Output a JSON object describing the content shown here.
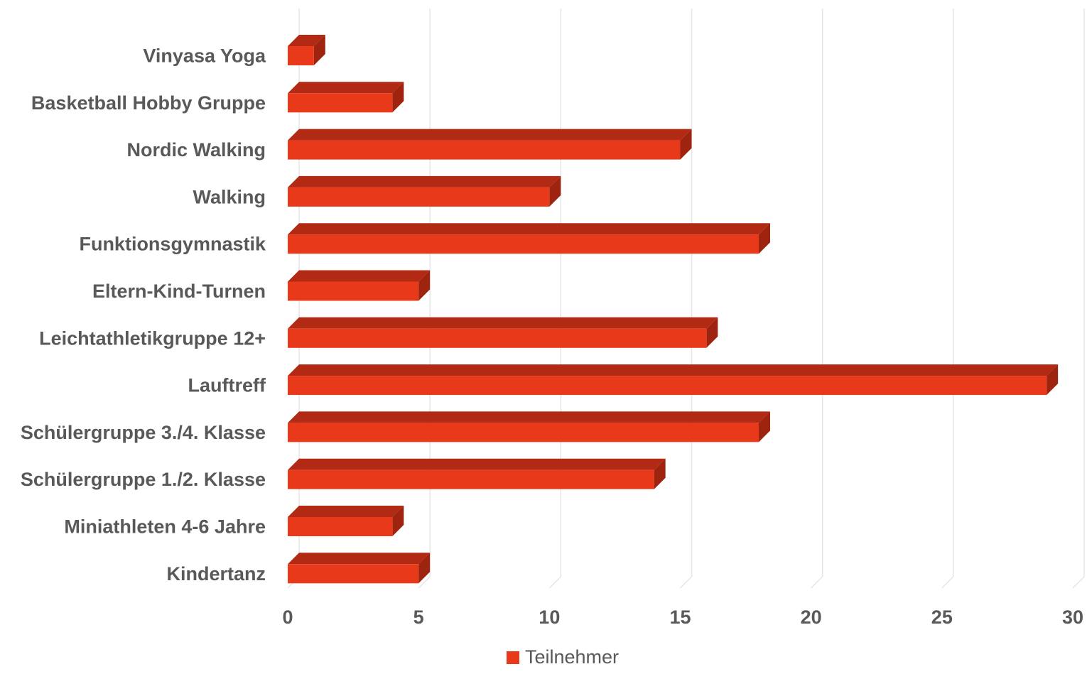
{
  "chart_data": {
    "type": "bar",
    "orientation": "horizontal",
    "style": "3d",
    "categories": [
      "Vinyasa Yoga",
      "Basketball Hobby Gruppe",
      "Nordic Walking",
      "Walking",
      "Funktionsgymnastik",
      "Eltern-Kind-Turnen",
      "Leichtathletikgruppe 12+",
      "Lauftreff",
      "Schülergruppe 3./4. Klasse",
      "Schülergruppe 1./2. Klasse",
      "Miniathleten 4-6 Jahre",
      "Kindertanz"
    ],
    "series": [
      {
        "name": "Teilnehmer",
        "values": [
          1,
          4,
          15,
          10,
          18,
          5,
          16,
          29,
          18,
          14,
          4,
          5
        ]
      }
    ],
    "xlim": [
      0,
      30
    ],
    "xticks": [
      "0",
      "5",
      "10",
      "15",
      "20",
      "25",
      "30"
    ],
    "grid": true,
    "legend": "bottom",
    "colors": {
      "bar_front": "#E8391A",
      "bar_top": "#B32A14",
      "bar_side": "#9E2410",
      "grid": "#E6E6E6",
      "text": "#595959"
    }
  }
}
